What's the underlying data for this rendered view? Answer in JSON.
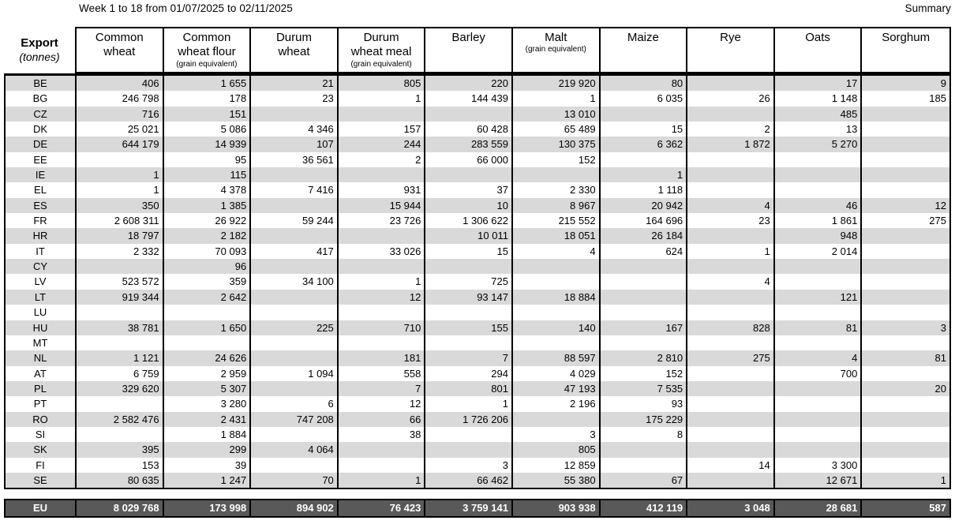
{
  "page": {
    "title": "Week 1 to 18 from 01/07/2025 to 02/11/2025",
    "summary_label": "Summary"
  },
  "table": {
    "corner": {
      "title": "Export",
      "subtitle": "(tonnes)"
    },
    "columns": [
      {
        "id": "common-wheat",
        "label": "Common\nwheat",
        "sub": ""
      },
      {
        "id": "common-wheat-flour",
        "label": "Common\nwheat flour",
        "sub": "(grain equivalent)"
      },
      {
        "id": "durum-wheat",
        "label": "Durum\nwheat",
        "sub": ""
      },
      {
        "id": "durum-wheat-meal",
        "label": "Durum\nwheat meal",
        "sub": "(grain equivalent)"
      },
      {
        "id": "barley",
        "label": "Barley",
        "sub": ""
      },
      {
        "id": "malt",
        "label": "Malt",
        "sub": "(grain equivalent)"
      },
      {
        "id": "maize",
        "label": "Maize",
        "sub": ""
      },
      {
        "id": "rye",
        "label": "Rye",
        "sub": ""
      },
      {
        "id": "oats",
        "label": "Oats",
        "sub": ""
      },
      {
        "id": "sorghum",
        "label": "Sorghum",
        "sub": ""
      }
    ],
    "rows": [
      {
        "code": "BE",
        "values": [
          "406",
          "1 655",
          "21",
          "805",
          "220",
          "219 920",
          "80",
          "",
          "17",
          "9"
        ]
      },
      {
        "code": "BG",
        "values": [
          "246 798",
          "178",
          "23",
          "1",
          "144 439",
          "1",
          "6 035",
          "26",
          "1 148",
          "185"
        ]
      },
      {
        "code": "CZ",
        "values": [
          "716",
          "151",
          "",
          "",
          "",
          "13 010",
          "",
          "",
          "485",
          ""
        ]
      },
      {
        "code": "DK",
        "values": [
          "25 021",
          "5 086",
          "4 346",
          "157",
          "60 428",
          "65 489",
          "15",
          "2",
          "13",
          ""
        ]
      },
      {
        "code": "DE",
        "values": [
          "644 179",
          "14 939",
          "107",
          "244",
          "283 559",
          "130 375",
          "6 362",
          "1 872",
          "5 270",
          ""
        ]
      },
      {
        "code": "EE",
        "values": [
          "",
          "95",
          "36 561",
          "2",
          "66 000",
          "152",
          "",
          "",
          "",
          ""
        ]
      },
      {
        "code": "IE",
        "values": [
          "1",
          "115",
          "",
          "",
          "",
          "",
          "1",
          "",
          "",
          ""
        ]
      },
      {
        "code": "EL",
        "values": [
          "1",
          "4 378",
          "7 416",
          "931",
          "37",
          "2 330",
          "1 118",
          "",
          "",
          ""
        ]
      },
      {
        "code": "ES",
        "values": [
          "350",
          "1 385",
          "",
          "15 944",
          "10",
          "8 967",
          "20 942",
          "4",
          "46",
          "12"
        ]
      },
      {
        "code": "FR",
        "values": [
          "2 608 311",
          "26 922",
          "59 244",
          "23 726",
          "1 306 622",
          "215 552",
          "164 696",
          "23",
          "1 861",
          "275"
        ]
      },
      {
        "code": "HR",
        "values": [
          "18 797",
          "2 182",
          "",
          "",
          "10 011",
          "18 051",
          "26 184",
          "",
          "948",
          ""
        ]
      },
      {
        "code": "IT",
        "values": [
          "2 332",
          "70 093",
          "417",
          "33 026",
          "15",
          "4",
          "624",
          "1",
          "2 014",
          ""
        ]
      },
      {
        "code": "CY",
        "values": [
          "",
          "96",
          "",
          "",
          "",
          "",
          "",
          "",
          "",
          ""
        ]
      },
      {
        "code": "LV",
        "values": [
          "523 572",
          "359",
          "34 100",
          "1",
          "725",
          "",
          "",
          "4",
          "",
          ""
        ]
      },
      {
        "code": "LT",
        "values": [
          "919 344",
          "2 642",
          "",
          "12",
          "93 147",
          "18 884",
          "",
          "",
          "121",
          ""
        ]
      },
      {
        "code": "LU",
        "values": [
          "",
          "",
          "",
          "",
          "",
          "",
          "",
          "",
          "",
          ""
        ]
      },
      {
        "code": "HU",
        "values": [
          "38 781",
          "1 650",
          "225",
          "710",
          "155",
          "140",
          "167",
          "828",
          "81",
          "3"
        ]
      },
      {
        "code": "MT",
        "values": [
          "",
          "",
          "",
          "",
          "",
          "",
          "",
          "",
          "",
          ""
        ]
      },
      {
        "code": "NL",
        "values": [
          "1 121",
          "24 626",
          "",
          "181",
          "7",
          "88 597",
          "2 810",
          "275",
          "4",
          "81"
        ]
      },
      {
        "code": "AT",
        "values": [
          "6 759",
          "2 959",
          "1 094",
          "558",
          "294",
          "4 029",
          "152",
          "",
          "700",
          ""
        ]
      },
      {
        "code": "PL",
        "values": [
          "329 620",
          "5 307",
          "",
          "7",
          "801",
          "47 193",
          "7 535",
          "",
          "",
          "20"
        ]
      },
      {
        "code": "PT",
        "values": [
          "",
          "3 280",
          "6",
          "12",
          "1",
          "2 196",
          "93",
          "",
          "",
          ""
        ]
      },
      {
        "code": "RO",
        "values": [
          "2 582 476",
          "2 431",
          "747 208",
          "66",
          "1 726 206",
          "",
          "175 229",
          "",
          "",
          ""
        ]
      },
      {
        "code": "SI",
        "values": [
          "",
          "1 884",
          "",
          "38",
          "",
          "3",
          "8",
          "",
          "",
          ""
        ]
      },
      {
        "code": "SK",
        "values": [
          "395",
          "299",
          "4 064",
          "",
          "",
          "805",
          "",
          "",
          "",
          ""
        ]
      },
      {
        "code": "FI",
        "values": [
          "153",
          "39",
          "",
          "",
          "3",
          "12 859",
          "",
          "14",
          "3 300",
          ""
        ]
      },
      {
        "code": "SE",
        "values": [
          "80 635",
          "1 247",
          "70",
          "1",
          "66 462",
          "55 380",
          "67",
          "",
          "12 671",
          "1"
        ]
      }
    ],
    "eu_row": {
      "code": "EU",
      "values": [
        "8 029 768",
        "173 998",
        "894 902",
        "76 423",
        "3 759 141",
        "903 938",
        "412 119",
        "3 048",
        "28 681",
        "587"
      ]
    },
    "colors": {
      "stripe": "#d9d9d9",
      "eu_row_background": "#595959",
      "border": "#000000"
    }
  }
}
